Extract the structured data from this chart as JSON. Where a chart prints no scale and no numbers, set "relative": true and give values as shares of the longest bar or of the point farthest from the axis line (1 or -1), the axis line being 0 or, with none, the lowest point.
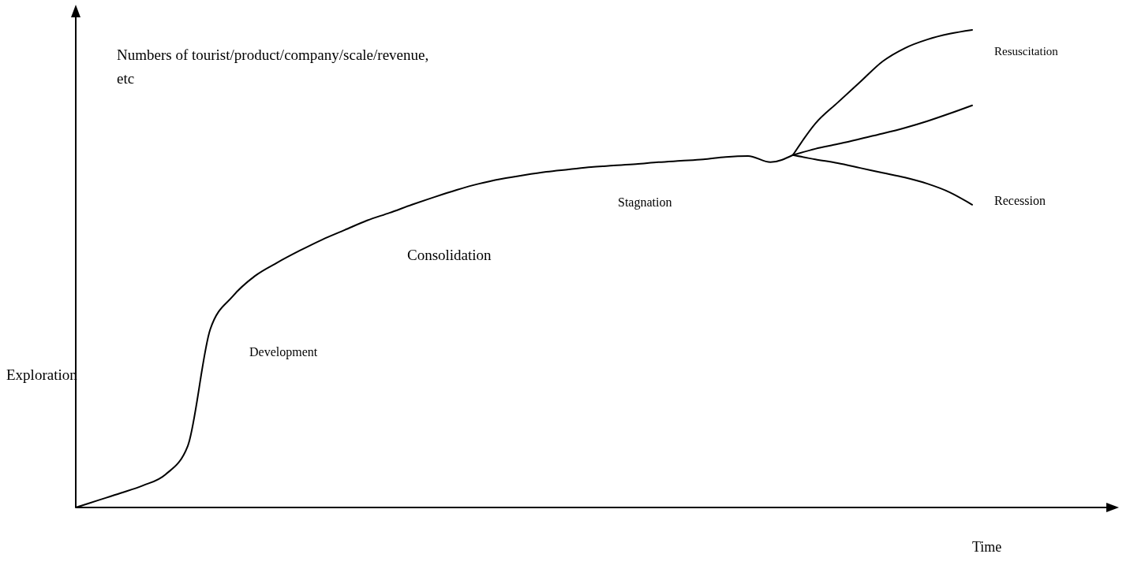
{
  "chart_data": {
    "type": "line",
    "relative": true,
    "xlabel": "Time",
    "ylabel": "Numbers of tourist/product/company/scale/revenue, etc",
    "categories": [
      null,
      null,
      null,
      null,
      null,
      null,
      null,
      null,
      null,
      null,
      null,
      null,
      null,
      null,
      null,
      null,
      null,
      null,
      null,
      null,
      null,
      null,
      null,
      null,
      null,
      null,
      null,
      null,
      null,
      null,
      null,
      null,
      null,
      null,
      null,
      null,
      null,
      null,
      null,
      null,
      null
    ],
    "series": [
      {
        "color": "#000000",
        "values": [
          0,
          0.015,
          0.03,
          0.046,
          0.069,
          0.129,
          0.373,
          0.442,
          0.485,
          0.513,
          0.538,
          0.561,
          0.581,
          0.601,
          0.617,
          0.634,
          0.65,
          0.665,
          0.678,
          0.688,
          0.696,
          0.703,
          0.708,
          0.713,
          0.716,
          0.719,
          0.723,
          0.726,
          0.729,
          0.734,
          0.736,
          0.723,
          0.738,
          null,
          null,
          null,
          null,
          null,
          null,
          null,
          null
        ]
      },
      {
        "name": "Resuscitation",
        "color": "#000000",
        "values": [
          null,
          null,
          null,
          null,
          null,
          null,
          null,
          null,
          null,
          null,
          null,
          null,
          null,
          null,
          null,
          null,
          null,
          null,
          null,
          null,
          null,
          null,
          null,
          null,
          null,
          null,
          null,
          null,
          null,
          null,
          null,
          null,
          0.738,
          0.804,
          0.848,
          0.891,
          0.934,
          0.962,
          0.98,
          0.992,
          1
        ]
      },
      {
        "color": "#000000",
        "values": [
          null,
          null,
          null,
          null,
          null,
          null,
          null,
          null,
          null,
          null,
          null,
          null,
          null,
          null,
          null,
          null,
          null,
          null,
          null,
          null,
          null,
          null,
          null,
          null,
          null,
          null,
          null,
          null,
          null,
          null,
          null,
          null,
          0.738,
          0.751,
          0.761,
          0.772,
          0.783,
          0.795,
          0.809,
          0.825,
          0.842
        ]
      },
      {
        "name": "Recession",
        "color": "#000000",
        "values": [
          null,
          null,
          null,
          null,
          null,
          null,
          null,
          null,
          null,
          null,
          null,
          null,
          null,
          null,
          null,
          null,
          null,
          null,
          null,
          null,
          null,
          null,
          null,
          null,
          null,
          null,
          null,
          null,
          null,
          null,
          null,
          null,
          0.738,
          0.729,
          0.721,
          0.711,
          0.701,
          0.691,
          0.678,
          0.66,
          0.634
        ]
      }
    ],
    "annotations": [
      "Exploration",
      "Development",
      "Consolidation",
      "Stagnation"
    ]
  }
}
